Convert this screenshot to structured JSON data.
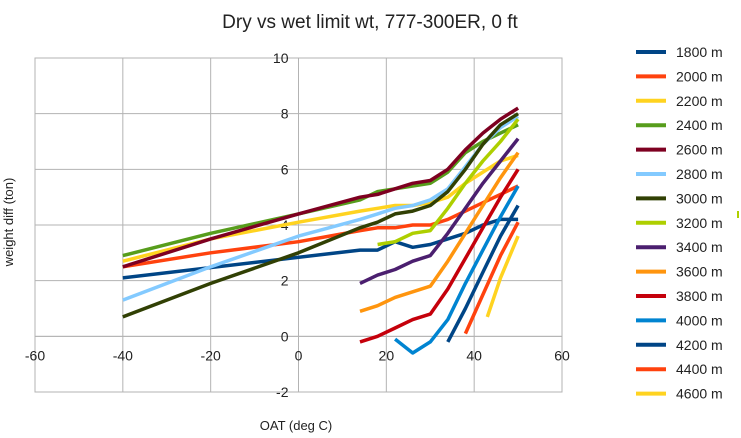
{
  "chart_data": {
    "type": "line",
    "title": "Dry vs wet limit wt, 777-300ER, 0 ft",
    "xlabel": "OAT (deg C)",
    "ylabel": "weight diff (ton)",
    "xlim": [
      -60,
      60
    ],
    "ylim": [
      -2,
      10
    ],
    "xticks": [
      "-60",
      "-40",
      "-20",
      "0",
      "20",
      "40",
      "60"
    ],
    "yticks": [
      "-2",
      "0",
      "2",
      "4",
      "6",
      "8",
      "10"
    ],
    "grid": "vertical and horizontal",
    "legend_position": "right",
    "series": [
      {
        "name": "1800 m",
        "color": "#004586",
        "points": [
          [
            -40,
            2.1
          ],
          [
            14,
            3.1
          ],
          [
            18,
            3.1
          ],
          [
            22,
            3.4
          ],
          [
            26,
            3.2
          ],
          [
            30,
            3.3
          ],
          [
            34,
            3.5
          ],
          [
            38,
            3.7
          ],
          [
            42,
            4.0
          ],
          [
            46,
            4.2
          ],
          [
            50,
            4.2
          ]
        ]
      },
      {
        "name": "2000 m",
        "color": "#ff420e",
        "points": [
          [
            -40,
            2.5
          ],
          [
            -20,
            3.0
          ],
          [
            0,
            3.4
          ],
          [
            14,
            3.8
          ],
          [
            18,
            3.9
          ],
          [
            22,
            3.9
          ],
          [
            26,
            4.0
          ],
          [
            30,
            4.0
          ],
          [
            34,
            4.2
          ],
          [
            38,
            4.5
          ],
          [
            42,
            4.8
          ],
          [
            46,
            5.1
          ],
          [
            50,
            5.4
          ]
        ]
      },
      {
        "name": "2200 m",
        "color": "#ffd320",
        "points": [
          [
            -40,
            2.7
          ],
          [
            -20,
            3.5
          ],
          [
            0,
            4.1
          ],
          [
            14,
            4.5
          ],
          [
            18,
            4.6
          ],
          [
            22,
            4.7
          ],
          [
            26,
            4.7
          ],
          [
            30,
            4.8
          ],
          [
            34,
            5.0
          ],
          [
            38,
            5.5
          ],
          [
            42,
            5.9
          ],
          [
            46,
            6.3
          ],
          [
            50,
            6.5
          ]
        ]
      },
      {
        "name": "2400 m",
        "color": "#579d1c",
        "points": [
          [
            -40,
            2.9
          ],
          [
            -20,
            3.7
          ],
          [
            0,
            4.4
          ],
          [
            14,
            4.9
          ],
          [
            18,
            5.2
          ],
          [
            22,
            5.3
          ],
          [
            26,
            5.4
          ],
          [
            30,
            5.5
          ],
          [
            34,
            5.9
          ],
          [
            38,
            6.6
          ],
          [
            42,
            7.0
          ],
          [
            46,
            7.3
          ],
          [
            50,
            7.6
          ]
        ]
      },
      {
        "name": "2600 m",
        "color": "#7e0021",
        "points": [
          [
            -40,
            2.5
          ],
          [
            -20,
            3.5
          ],
          [
            0,
            4.4
          ],
          [
            14,
            5.0
          ],
          [
            18,
            5.1
          ],
          [
            22,
            5.3
          ],
          [
            26,
            5.5
          ],
          [
            30,
            5.6
          ],
          [
            34,
            6.0
          ],
          [
            38,
            6.7
          ],
          [
            42,
            7.3
          ],
          [
            46,
            7.8
          ],
          [
            50,
            8.2
          ]
        ]
      },
      {
        "name": "2800 m",
        "color": "#83caff",
        "points": [
          [
            -40,
            1.3
          ],
          [
            -20,
            2.5
          ],
          [
            0,
            3.6
          ],
          [
            14,
            4.2
          ],
          [
            18,
            4.4
          ],
          [
            22,
            4.6
          ],
          [
            26,
            4.7
          ],
          [
            30,
            4.9
          ],
          [
            34,
            5.3
          ],
          [
            38,
            6.1
          ],
          [
            42,
            6.9
          ],
          [
            46,
            7.5
          ],
          [
            50,
            7.9
          ]
        ]
      },
      {
        "name": "3000 m",
        "color": "#314004",
        "points": [
          [
            -40,
            0.7
          ],
          [
            -20,
            1.9
          ],
          [
            0,
            3.0
          ],
          [
            14,
            3.9
          ],
          [
            18,
            4.1
          ],
          [
            22,
            4.4
          ],
          [
            26,
            4.5
          ],
          [
            30,
            4.7
          ],
          [
            34,
            5.2
          ],
          [
            38,
            6.0
          ],
          [
            42,
            6.9
          ],
          [
            46,
            7.6
          ],
          [
            50,
            8.0
          ]
        ]
      },
      {
        "name": "3200 m",
        "color": "#aecf00",
        "points": [
          [
            18,
            3.3
          ],
          [
            22,
            3.4
          ],
          [
            26,
            3.7
          ],
          [
            30,
            3.8
          ],
          [
            34,
            4.6
          ],
          [
            38,
            5.5
          ],
          [
            42,
            6.3
          ],
          [
            46,
            7.0
          ],
          [
            50,
            7.8
          ]
        ]
      },
      {
        "name": "3400 m",
        "color": "#4b1f6f",
        "points": [
          [
            14,
            1.9
          ],
          [
            18,
            2.2
          ],
          [
            22,
            2.4
          ],
          [
            26,
            2.7
          ],
          [
            30,
            2.9
          ],
          [
            34,
            3.7
          ],
          [
            38,
            4.6
          ],
          [
            42,
            5.5
          ],
          [
            46,
            6.3
          ],
          [
            50,
            7.1
          ]
        ]
      },
      {
        "name": "3600 m",
        "color": "#ff950e",
        "points": [
          [
            14,
            0.9
          ],
          [
            18,
            1.1
          ],
          [
            22,
            1.4
          ],
          [
            26,
            1.6
          ],
          [
            30,
            1.8
          ],
          [
            34,
            2.7
          ],
          [
            38,
            3.7
          ],
          [
            42,
            4.7
          ],
          [
            46,
            5.7
          ],
          [
            50,
            6.6
          ]
        ]
      },
      {
        "name": "3800 m",
        "color": "#c5000b",
        "points": [
          [
            14,
            -0.2
          ],
          [
            18,
            0.0
          ],
          [
            22,
            0.3
          ],
          [
            26,
            0.6
          ],
          [
            30,
            0.8
          ],
          [
            34,
            1.7
          ],
          [
            38,
            2.8
          ],
          [
            42,
            3.9
          ],
          [
            46,
            5.0
          ],
          [
            50,
            6.0
          ]
        ]
      },
      {
        "name": "4000 m",
        "color": "#0084d1",
        "points": [
          [
            22,
            -0.1
          ],
          [
            26,
            -0.6
          ],
          [
            30,
            -0.2
          ],
          [
            34,
            0.6
          ],
          [
            38,
            1.9
          ],
          [
            42,
            3.1
          ],
          [
            46,
            4.3
          ],
          [
            50,
            5.4
          ]
        ]
      },
      {
        "name": "4200 m",
        "color": "#004586",
        "points": [
          [
            34,
            -0.2
          ],
          [
            38,
            1.0
          ],
          [
            42,
            2.3
          ],
          [
            46,
            3.6
          ],
          [
            50,
            4.7
          ]
        ]
      },
      {
        "name": "4400 m",
        "color": "#ff420e",
        "points": [
          [
            38,
            0.1
          ],
          [
            42,
            1.5
          ],
          [
            46,
            2.9
          ],
          [
            50,
            4.1
          ]
        ]
      },
      {
        "name": "4600 m",
        "color": "#ffd320",
        "points": [
          [
            43,
            0.7
          ],
          [
            46,
            2.1
          ],
          [
            50,
            3.6
          ]
        ]
      }
    ]
  }
}
